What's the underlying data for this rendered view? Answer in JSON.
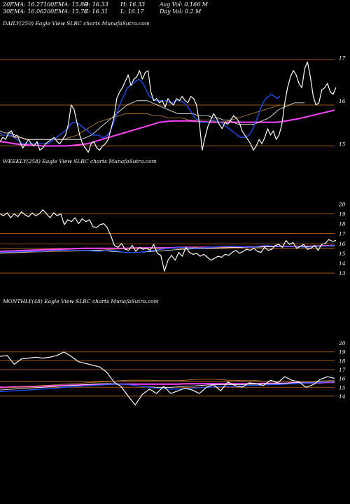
{
  "header": {
    "row1": [
      "20EMA: 16.27",
      "100EMA: 15.89",
      "O: 16.33",
      "H: 16.33",
      "Avg Vol: 0.166  M"
    ],
    "row2": [
      "30EMA: 16.06",
      "200EMA: 15.78",
      "C: 16.31",
      "L: 16.17",
      "Day Vol: 0.2  M"
    ]
  },
  "chart_data": [
    {
      "type": "line",
      "label": "DAILY(250) Eagle  View  SLRC charts MunafaSutra.com",
      "ylim": [
        14.6,
        17.2
      ],
      "yticks": [
        15,
        16,
        17
      ],
      "hlines": [
        16.95,
        15.9,
        14.95
      ],
      "series": [
        {
          "color": "#ffffff",
          "values": [
            15.05,
            15.15,
            15.1,
            15.25,
            15.3,
            15.15,
            15.2,
            15.05,
            14.9,
            15.0,
            15.1,
            15.0,
            14.95,
            15.05,
            14.85,
            14.9,
            15.0,
            15.05,
            15.1,
            15.15,
            15.05,
            15.0,
            15.1,
            15.2,
            15.45,
            15.9,
            15.8,
            15.5,
            15.2,
            15.0,
            14.9,
            14.8,
            15.0,
            15.05,
            14.9,
            14.85,
            14.95,
            15.0,
            15.1,
            15.35,
            15.6,
            16.05,
            16.2,
            16.3,
            16.45,
            16.6,
            16.35,
            16.5,
            16.55,
            16.7,
            16.5,
            16.65,
            16.7,
            16.2,
            16.0,
            16.05,
            15.95,
            16.0,
            15.85,
            16.05,
            15.95,
            15.9,
            16.05,
            16.0,
            16.1,
            16.0,
            15.95,
            16.1,
            16.05,
            15.9,
            15.5,
            14.85,
            15.15,
            15.4,
            15.55,
            15.7,
            15.6,
            15.45,
            15.35,
            15.5,
            15.45,
            15.55,
            15.65,
            15.6,
            15.5,
            15.3,
            15.2,
            15.1,
            15.0,
            14.85,
            14.95,
            15.1,
            15.0,
            15.15,
            15.35,
            15.2,
            15.3,
            15.1,
            15.2,
            15.45,
            15.95,
            16.3,
            16.55,
            16.7,
            16.6,
            16.4,
            16.3,
            16.75,
            16.9,
            16.55,
            16.1,
            15.9,
            15.95,
            16.25,
            16.3,
            16.4,
            16.2,
            16.15,
            16.31
          ]
        },
        {
          "color": "#1e50ff",
          "values": [
            15.25,
            15.2,
            15.2,
            15.2,
            15.2,
            15.15,
            15.1,
            15.05,
            15.0,
            15.0,
            15.0,
            15.0,
            15.0,
            15.0,
            15.0,
            15.0,
            15.0,
            15.0,
            15.05,
            15.1,
            15.15,
            15.2,
            15.25,
            15.3,
            15.35,
            15.45,
            15.5,
            15.5,
            15.45,
            15.4,
            15.35,
            15.3,
            15.25,
            15.2,
            15.2,
            15.2,
            15.15,
            15.15,
            15.2,
            15.3,
            15.45,
            15.65,
            15.85,
            16.0,
            16.15,
            16.3,
            16.35,
            16.4,
            16.45,
            16.5,
            16.45,
            16.35,
            16.2,
            16.1,
            16.05,
            16.0,
            16.0,
            16.0,
            16.0,
            16.0,
            15.95,
            15.95,
            16.0,
            16.0,
            16.0,
            15.95,
            15.9,
            15.8,
            15.7,
            15.6,
            15.55,
            15.5,
            15.5,
            15.5,
            15.5,
            15.55,
            15.55,
            15.5,
            15.5,
            15.45,
            15.4,
            15.35,
            15.3,
            15.25,
            15.2,
            15.15,
            15.15,
            15.15,
            15.2,
            15.3,
            15.45,
            15.6,
            15.8,
            15.95,
            16.05,
            16.1,
            16.15,
            16.1,
            16.05,
            16.1
          ]
        },
        {
          "color": "#ffffff",
          "values": [
            15.3,
            15.25,
            15.25,
            15.2,
            15.15,
            15.1,
            15.1,
            15.1,
            15.1,
            15.1,
            15.1,
            15.1,
            15.1,
            15.1,
            15.1,
            15.1,
            15.1,
            15.15,
            15.2,
            15.3,
            15.4,
            15.5,
            15.6,
            15.7,
            15.8,
            15.9,
            15.95,
            16.0,
            16.0,
            16.0,
            15.95,
            15.9,
            15.85,
            15.8,
            15.75,
            15.7,
            15.7,
            15.7,
            15.7,
            15.65,
            15.65,
            15.65,
            15.6,
            15.6,
            15.55,
            15.55,
            15.5,
            15.45,
            15.45,
            15.45,
            15.45,
            15.5,
            15.55,
            15.6,
            15.7,
            15.8,
            15.85,
            15.9,
            15.95,
            15.95,
            15.95
          ]
        },
        {
          "color": "#cc8833",
          "values": [
            15.2,
            15.2,
            15.15,
            15.15,
            15.1,
            15.1,
            15.1,
            15.1,
            15.1,
            15.1,
            15.15,
            15.2,
            15.3,
            15.4,
            15.5,
            15.55,
            15.6,
            15.65,
            15.7,
            15.7,
            15.7,
            15.7,
            15.65,
            15.65,
            15.6,
            15.6,
            15.6,
            15.55,
            15.55,
            15.55,
            15.55,
            15.5,
            15.5,
            15.55,
            15.6,
            15.65,
            15.7,
            15.75,
            15.8,
            15.85,
            15.9
          ]
        },
        {
          "color": "#ff44ff",
          "values": [
            15.05,
            15.03,
            15.0,
            14.98,
            14.97,
            14.96,
            14.95,
            14.95,
            14.95,
            14.95,
            14.96,
            14.98,
            15.0,
            15.05,
            15.1,
            15.15,
            15.2,
            15.25,
            15.3,
            15.35,
            15.4,
            15.45,
            15.5,
            15.52,
            15.53,
            15.53,
            15.53,
            15.52,
            15.51,
            15.5,
            15.5,
            15.5,
            15.5,
            15.5,
            15.5,
            15.5,
            15.5,
            15.5,
            15.5,
            15.52,
            15.55,
            15.58,
            15.62,
            15.66,
            15.7,
            15.74,
            15.78
          ]
        }
      ]
    },
    {
      "type": "line",
      "label": "WEEKLY(258) Eagle  View  SLRC charts MunafaSutra.com",
      "ylim": [
        12.3,
        20.8
      ],
      "yticks": [
        13,
        14,
        15,
        16,
        17,
        18,
        19,
        20
      ],
      "hlines": [
        19,
        17,
        15.95,
        15.5,
        13
      ],
      "series": [
        {
          "color": "#ffffff",
          "values": [
            19.0,
            18.8,
            19.1,
            18.6,
            19.0,
            18.7,
            19.2,
            18.9,
            18.7,
            19.1,
            18.8,
            19.0,
            19.4,
            19.0,
            18.6,
            19.1,
            18.8,
            19.0,
            17.9,
            18.4,
            18.2,
            18.6,
            18.0,
            18.5,
            18.2,
            18.4,
            17.7,
            17.6,
            17.9,
            18.0,
            17.6,
            16.8,
            15.8,
            15.6,
            16.0,
            15.4,
            15.3,
            15.8,
            15.2,
            15.6,
            15.4,
            15.5,
            15.3,
            15.9,
            15.0,
            14.8,
            13.2,
            14.3,
            14.8,
            14.3,
            15.1,
            14.7,
            15.6,
            15.1,
            14.9,
            15.0,
            14.7,
            14.9,
            14.6,
            14.3,
            14.5,
            14.7,
            14.6,
            14.9,
            14.8,
            15.1,
            15.3,
            15.0,
            15.2,
            15.4,
            15.3,
            15.5,
            15.2,
            15.1,
            15.6,
            15.3,
            15.4,
            15.8,
            15.9,
            15.6,
            16.3,
            15.9,
            16.1,
            15.5,
            15.7,
            15.9,
            15.4,
            15.5,
            15.8,
            15.3,
            15.9,
            16.0,
            16.4,
            16.2,
            16.3
          ]
        },
        {
          "color": "#1e50ff",
          "values": [
            15.1,
            15.15,
            15.2,
            15.2,
            15.3,
            15.3,
            15.3,
            15.2,
            15.3,
            15.1,
            15.1,
            15.3,
            15.5,
            15.6,
            15.5,
            15.6,
            15.7,
            15.7,
            15.6,
            15.8,
            15.7,
            15.7,
            15.6,
            15.7,
            15.8
          ]
        },
        {
          "color": "#ffffff",
          "values": [
            15.05,
            15.1,
            15.15,
            15.2,
            15.25,
            15.3,
            15.3,
            15.3,
            15.2,
            15.1,
            15.1,
            15.2,
            15.3,
            15.4,
            15.45,
            15.5,
            15.55,
            15.6,
            15.6,
            15.65,
            15.7,
            15.7,
            15.65,
            15.7,
            15.75
          ]
        },
        {
          "color": "#cc8833",
          "values": [
            15.0,
            15.05,
            15.1,
            15.15,
            15.2,
            15.2,
            15.25,
            15.3,
            15.4,
            15.45,
            15.5,
            15.5,
            15.5,
            15.55,
            15.6,
            15.6,
            15.6,
            15.6,
            15.65,
            15.65,
            15.7,
            15.7,
            15.7,
            15.75,
            15.8
          ]
        },
        {
          "color": "#ff44ff",
          "values": [
            15.2,
            15.25,
            15.3,
            15.35,
            15.4,
            15.45,
            15.5,
            15.5,
            15.5,
            15.5,
            15.55,
            15.55,
            15.55,
            15.6,
            15.6,
            15.6,
            15.6,
            15.65,
            15.65,
            15.7,
            15.7,
            15.7,
            15.7,
            15.75,
            15.8
          ]
        }
      ]
    },
    {
      "type": "line",
      "label": "MONTHLY(48) Eagle  View  SLRC charts MunafaSutra.com",
      "ylim": [
        11.3,
        20.8
      ],
      "yticks": [
        14,
        15,
        16,
        17,
        18,
        19,
        20
      ],
      "hlines": [
        19,
        18,
        17,
        15.7,
        15,
        14
      ],
      "series": [
        {
          "color": "#ffffff",
          "values": [
            18.5,
            18.6,
            17.6,
            18.2,
            18.3,
            18.4,
            18.3,
            18.4,
            18.6,
            19.0,
            18.5,
            17.9,
            17.7,
            17.5,
            17.3,
            16.7,
            15.6,
            15.1,
            14.0,
            13.0,
            14.2,
            14.8,
            14.3,
            15.1,
            14.3,
            14.6,
            14.9,
            14.7,
            14.3,
            15.0,
            15.3,
            14.6,
            15.6,
            15.2,
            15.0,
            15.5,
            15.4,
            15.2,
            15.8,
            15.5,
            16.2,
            15.8,
            15.6,
            15.0,
            15.3,
            15.9,
            16.2,
            16.0
          ]
        },
        {
          "color": "#1e50ff",
          "values": [
            14.5,
            14.55,
            14.6,
            14.65,
            14.7,
            14.75,
            14.8,
            14.85,
            14.9,
            15.0,
            15.05,
            15.1,
            15.15,
            15.2,
            15.25,
            15.3,
            15.35,
            15.35,
            15.3,
            15.2,
            15.1,
            15.0,
            14.9,
            14.85,
            14.8,
            14.8,
            14.85,
            14.9,
            14.95,
            15.0,
            15.05,
            15.1,
            15.1,
            15.1,
            15.15,
            15.2,
            15.2,
            15.25,
            15.3,
            15.3,
            15.35,
            15.4,
            15.45,
            15.5,
            15.5,
            15.55,
            15.6,
            15.6
          ]
        },
        {
          "color": "#ffffff",
          "values": [
            14.7,
            14.75,
            14.8,
            14.85,
            14.9,
            14.95,
            15.0,
            15.05,
            15.1,
            15.15,
            15.2,
            15.25,
            15.3,
            15.35,
            15.4,
            15.4,
            15.4,
            15.35,
            15.3,
            15.2,
            15.1,
            15.05,
            15.0,
            15.0,
            15.0,
            15.05,
            15.1,
            15.15,
            15.2,
            15.25,
            15.3,
            15.3,
            15.3,
            15.3,
            15.3,
            15.35,
            15.35,
            15.4,
            15.4,
            15.45,
            15.45,
            15.5,
            15.5,
            15.55,
            15.55,
            15.6,
            15.6,
            15.65
          ]
        },
        {
          "color": "#cc8833",
          "values": [
            14.9,
            14.95,
            15.0,
            15.05,
            15.1,
            15.15,
            15.2,
            15.25,
            15.3,
            15.35,
            15.4,
            15.45,
            15.5,
            15.55,
            15.6,
            15.65,
            15.7,
            15.75,
            15.8,
            15.8,
            15.8,
            15.8,
            15.75,
            15.75,
            15.75,
            15.75,
            15.8,
            15.85,
            15.9,
            15.9,
            15.9,
            15.85,
            15.8,
            15.8,
            15.75,
            15.75,
            15.75,
            15.7,
            15.7,
            15.7,
            15.7,
            15.7,
            15.7,
            15.7,
            15.7,
            15.7,
            15.75,
            15.75
          ]
        },
        {
          "color": "#ff44ff",
          "values": [
            15.0,
            15.0,
            15.05,
            15.05,
            15.1,
            15.1,
            15.15,
            15.15,
            15.2,
            15.2,
            15.25,
            15.25,
            15.3,
            15.3,
            15.3,
            15.35,
            15.35,
            15.35,
            15.35,
            15.35,
            15.35,
            15.35,
            15.35,
            15.35,
            15.35,
            15.35,
            15.4,
            15.4,
            15.4,
            15.4,
            15.4,
            15.4,
            15.4,
            15.4,
            15.4,
            15.4,
            15.4,
            15.45,
            15.45,
            15.45,
            15.45,
            15.5,
            15.5,
            15.5,
            15.5,
            15.5,
            15.55,
            15.55
          ]
        }
      ]
    }
  ]
}
